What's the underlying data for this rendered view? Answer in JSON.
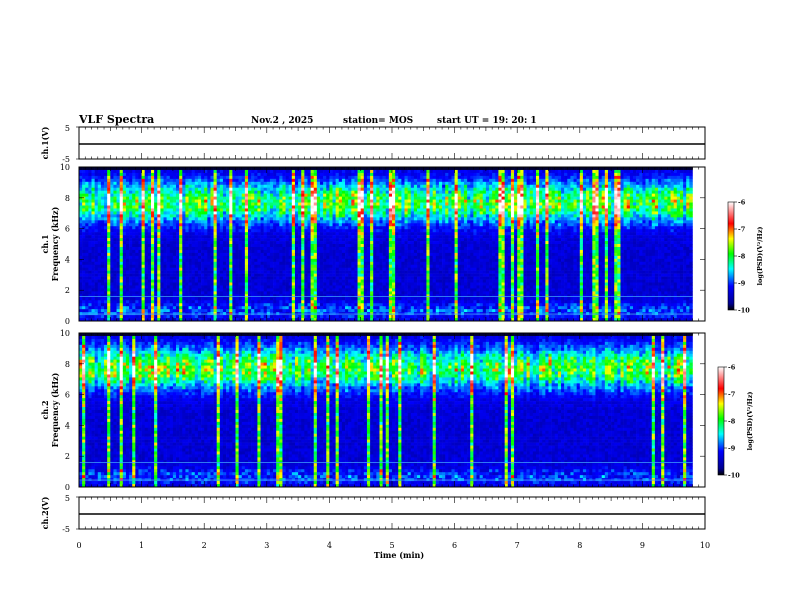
{
  "header": {
    "title": "VLF Spectra",
    "date": "Nov.2  , 2025",
    "station": "station= MOS",
    "start": "start  UT  =   19: 20: 1"
  },
  "chart_data": [
    {
      "type": "line",
      "ylabel": "ch.1(V)",
      "ylim": [
        -5,
        5
      ],
      "yticks": [
        "5",
        "-5"
      ],
      "xlim": [
        0,
        10
      ],
      "baseline_v": 0
    },
    {
      "type": "heatmap",
      "channel": "ch.1",
      "ylabel": "Frequency (kHz)",
      "ylim": [
        0,
        10
      ],
      "yticks": [
        "0",
        "2",
        "4",
        "6",
        "8",
        "10"
      ],
      "xlim": [
        0,
        10
      ],
      "data_end_min": 9.8,
      "colorbar": {
        "label": "log(PSD)(V²/Hz)",
        "range": [
          -10,
          -6
        ],
        "ticks": [
          "-6",
          "-7",
          "-8",
          "-9",
          "-10"
        ]
      }
    },
    {
      "type": "heatmap",
      "channel": "ch.2",
      "ylabel": "Frequency (kHz)",
      "ylim": [
        0,
        10
      ],
      "yticks": [
        "0",
        "2",
        "4",
        "6",
        "8",
        "10"
      ],
      "xlim": [
        0,
        10
      ],
      "data_end_min": 9.8,
      "colorbar": {
        "label": "log(PSD)(V²/Hz)",
        "range": [
          -10,
          -6
        ],
        "ticks": [
          "-6",
          "-7",
          "-8",
          "-9",
          "-10"
        ]
      }
    },
    {
      "type": "line",
      "ylabel": "ch.2(V)",
      "ylim": [
        -5,
        5
      ],
      "yticks": [
        "5",
        "-5"
      ],
      "xlim": [
        0,
        10
      ],
      "baseline_v": 0
    }
  ],
  "xaxis": {
    "label": "Time (min)",
    "range": [
      0,
      10
    ],
    "ticks": [
      "0",
      "1",
      "2",
      "3",
      "4",
      "5",
      "6",
      "7",
      "8",
      "9",
      "10"
    ]
  },
  "colors": {
    "line": "#000000",
    "background": "#ffffff"
  }
}
